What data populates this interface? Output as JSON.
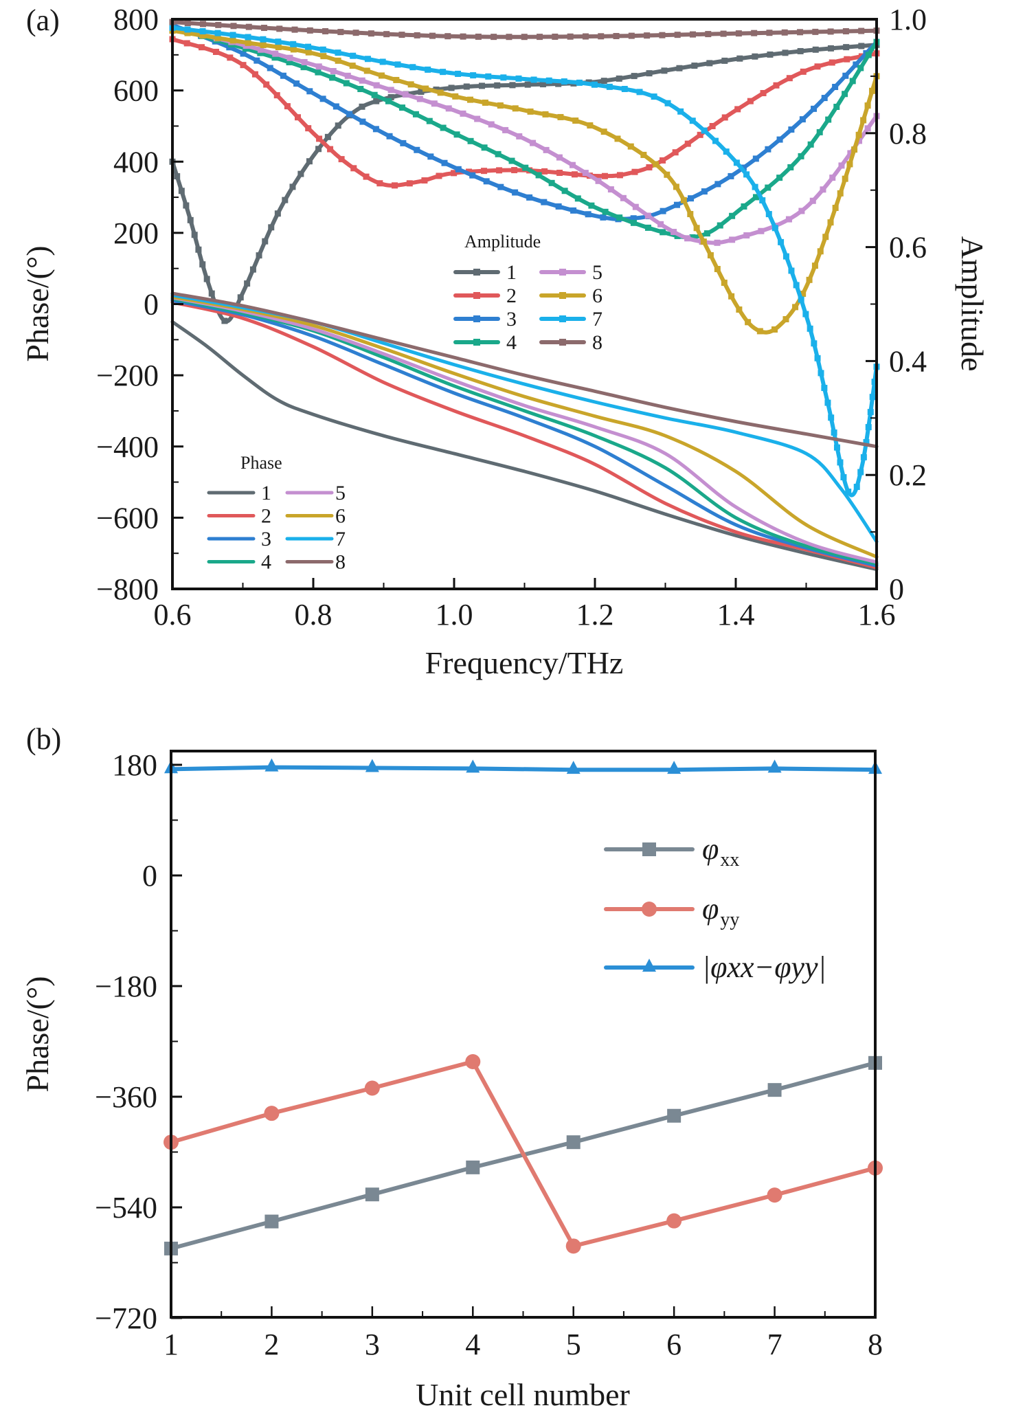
{
  "chart_data": [
    {
      "panel_label": "(a)",
      "type": "line",
      "xlabel": "Frequency/THz",
      "ylabel": "Phase/(°)",
      "y2label": "Amplitude",
      "xlim": [
        0.6,
        1.6
      ],
      "ylim": [
        -800,
        800
      ],
      "y2lim": [
        0,
        1.0
      ],
      "x_ticks": [
        "0.6",
        "0.8",
        "1.0",
        "1.2",
        "1.4",
        "1.6"
      ],
      "y_ticks": [
        "−800",
        "−600",
        "−400",
        "−200",
        "0",
        "200",
        "400",
        "600",
        "800"
      ],
      "y2_ticks": [
        "0",
        "0.2",
        "0.4",
        "0.6",
        "0.8",
        "1.0"
      ],
      "grid": false,
      "colors": [
        "#5f6b72",
        "#e0585a",
        "#2e7fd1",
        "#1aa88a",
        "#c48fd0",
        "#c9a52a",
        "#1ab0ea",
        "#8c6a6c"
      ],
      "amplitude_legend": {
        "title": "Amplitude",
        "position": "center",
        "labels": [
          "1",
          "2",
          "3",
          "4",
          "5",
          "6",
          "7",
          "8"
        ]
      },
      "phase_legend": {
        "title": "Phase",
        "position": "bottom-left",
        "labels": [
          "1",
          "2",
          "3",
          "4",
          "5",
          "6",
          "7",
          "8"
        ]
      },
      "amplitude_series": [
        {
          "name": "1",
          "x": [
            0.6,
            0.625,
            0.65,
            0.675,
            0.7,
            0.75,
            0.8,
            0.85,
            0.9,
            1.0,
            1.1,
            1.2,
            1.3,
            1.4,
            1.5,
            1.6
          ],
          "values": [
            0.75,
            0.65,
            0.54,
            0.47,
            0.52,
            0.66,
            0.76,
            0.83,
            0.86,
            0.88,
            0.885,
            0.89,
            0.91,
            0.93,
            0.945,
            0.955
          ]
        },
        {
          "name": "2",
          "x": [
            0.6,
            0.7,
            0.8,
            0.85,
            0.9,
            0.95,
            1.0,
            1.1,
            1.2,
            1.25,
            1.3,
            1.4,
            1.5,
            1.6
          ],
          "values": [
            0.965,
            0.92,
            0.8,
            0.745,
            0.71,
            0.715,
            0.73,
            0.735,
            0.725,
            0.73,
            0.755,
            0.84,
            0.91,
            0.94
          ]
        },
        {
          "name": "3",
          "x": [
            0.6,
            0.7,
            0.8,
            0.9,
            1.0,
            1.1,
            1.2,
            1.25,
            1.3,
            1.4,
            1.5,
            1.6
          ],
          "values": [
            0.99,
            0.94,
            0.87,
            0.8,
            0.74,
            0.69,
            0.655,
            0.65,
            0.665,
            0.73,
            0.83,
            0.96
          ]
        },
        {
          "name": "4",
          "x": [
            0.6,
            0.7,
            0.8,
            0.9,
            1.0,
            1.1,
            1.2,
            1.3,
            1.35,
            1.4,
            1.5,
            1.6
          ],
          "values": [
            0.985,
            0.95,
            0.91,
            0.86,
            0.8,
            0.74,
            0.67,
            0.625,
            0.62,
            0.66,
            0.77,
            0.96
          ]
        },
        {
          "name": "5",
          "x": [
            0.6,
            0.7,
            0.8,
            0.9,
            1.0,
            1.1,
            1.2,
            1.3,
            1.35,
            1.4,
            1.5,
            1.6
          ],
          "values": [
            0.985,
            0.955,
            0.92,
            0.88,
            0.84,
            0.79,
            0.72,
            0.635,
            0.61,
            0.615,
            0.67,
            0.83
          ]
        },
        {
          "name": "6",
          "x": [
            0.6,
            0.7,
            0.8,
            0.9,
            1.0,
            1.1,
            1.2,
            1.3,
            1.35,
            1.4,
            1.43,
            1.46,
            1.5,
            1.55,
            1.6
          ],
          "values": [
            0.98,
            0.96,
            0.94,
            0.9,
            0.865,
            0.84,
            0.81,
            0.73,
            0.62,
            0.5,
            0.455,
            0.46,
            0.53,
            0.7,
            0.9
          ]
        },
        {
          "name": "7",
          "x": [
            0.6,
            0.7,
            0.8,
            0.9,
            1.0,
            1.1,
            1.2,
            1.3,
            1.4,
            1.45,
            1.5,
            1.53,
            1.56,
            1.58,
            1.6
          ],
          "values": [
            0.985,
            0.97,
            0.95,
            0.925,
            0.905,
            0.895,
            0.885,
            0.855,
            0.75,
            0.65,
            0.48,
            0.33,
            0.17,
            0.22,
            0.39
          ]
        },
        {
          "name": "8",
          "x": [
            0.6,
            0.8,
            1.0,
            1.2,
            1.4,
            1.6
          ],
          "values": [
            0.995,
            0.98,
            0.97,
            0.97,
            0.975,
            0.98
          ]
        }
      ],
      "phase_series": [
        {
          "name": "1",
          "x": [
            0.6,
            0.65,
            0.7,
            0.75,
            0.8,
            0.9,
            1.0,
            1.1,
            1.2,
            1.3,
            1.4,
            1.5,
            1.6
          ],
          "values": [
            -50,
            -120,
            -200,
            -270,
            -310,
            -370,
            -420,
            -470,
            -525,
            -590,
            -650,
            -700,
            -745
          ]
        },
        {
          "name": "2",
          "x": [
            0.6,
            0.7,
            0.8,
            0.9,
            1.0,
            1.1,
            1.2,
            1.3,
            1.4,
            1.5,
            1.6
          ],
          "values": [
            5,
            -40,
            -120,
            -220,
            -300,
            -370,
            -450,
            -560,
            -640,
            -690,
            -740
          ]
        },
        {
          "name": "3",
          "x": [
            0.6,
            0.7,
            0.8,
            0.9,
            1.0,
            1.1,
            1.2,
            1.3,
            1.4,
            1.5,
            1.6
          ],
          "values": [
            10,
            -30,
            -90,
            -170,
            -250,
            -320,
            -400,
            -510,
            -620,
            -685,
            -735
          ]
        },
        {
          "name": "4",
          "x": [
            0.6,
            0.7,
            0.8,
            0.9,
            1.0,
            1.1,
            1.2,
            1.3,
            1.4,
            1.5,
            1.6
          ],
          "values": [
            15,
            -25,
            -75,
            -150,
            -230,
            -300,
            -370,
            -460,
            -600,
            -680,
            -730
          ]
        },
        {
          "name": "5",
          "x": [
            0.6,
            0.7,
            0.8,
            0.9,
            1.0,
            1.1,
            1.2,
            1.3,
            1.4,
            1.5,
            1.6
          ],
          "values": [
            18,
            -20,
            -70,
            -140,
            -215,
            -285,
            -345,
            -420,
            -570,
            -670,
            -725
          ]
        },
        {
          "name": "6",
          "x": [
            0.6,
            0.7,
            0.8,
            0.9,
            1.0,
            1.1,
            1.2,
            1.3,
            1.4,
            1.5,
            1.6
          ],
          "values": [
            20,
            -15,
            -60,
            -125,
            -195,
            -260,
            -315,
            -370,
            -470,
            -620,
            -710
          ]
        },
        {
          "name": "7",
          "x": [
            0.6,
            0.7,
            0.8,
            0.9,
            1.0,
            1.1,
            1.2,
            1.3,
            1.4,
            1.5,
            1.55,
            1.6
          ],
          "values": [
            25,
            -10,
            -50,
            -110,
            -170,
            -225,
            -275,
            -320,
            -360,
            -420,
            -520,
            -667
          ]
        },
        {
          "name": "8",
          "x": [
            0.6,
            0.7,
            0.8,
            0.9,
            1.0,
            1.1,
            1.2,
            1.3,
            1.4,
            1.5,
            1.6
          ],
          "values": [
            30,
            -5,
            -50,
            -100,
            -150,
            -200,
            -245,
            -290,
            -330,
            -365,
            -400
          ]
        }
      ]
    },
    {
      "panel_label": "(b)",
      "type": "line",
      "xlabel": "Unit cell number",
      "ylabel": "Phase/(°)",
      "xlim": [
        1,
        8
      ],
      "ylim": [
        -720,
        200
      ],
      "x_ticks": [
        "1",
        "2",
        "3",
        "4",
        "5",
        "6",
        "7",
        "8"
      ],
      "y_ticks": [
        "−720",
        "−540",
        "−360",
        "−180",
        "0",
        "180"
      ],
      "grid": false,
      "legend_position": "right",
      "categories": [
        1,
        2,
        3,
        4,
        5,
        6,
        7,
        8
      ],
      "series": [
        {
          "name": "φxx",
          "symbol": "φ",
          "subscript": "xx",
          "marker": "square",
          "color": "#7a8893",
          "values": [
            -607,
            -563,
            -519,
            -475,
            -434,
            -391,
            -349,
            -305
          ]
        },
        {
          "name": "φyy",
          "symbol": "φ",
          "subscript": "yy",
          "marker": "circle",
          "color": "#e07a70",
          "values": [
            -434,
            -387,
            -346,
            -303,
            -603,
            -562,
            -520,
            -476
          ]
        },
        {
          "name": "|φxx−φyy|",
          "marker": "triangle",
          "color": "#2b8fd6",
          "values": [
            173,
            176,
            175,
            174,
            172,
            172,
            174,
            172
          ]
        }
      ]
    }
  ]
}
